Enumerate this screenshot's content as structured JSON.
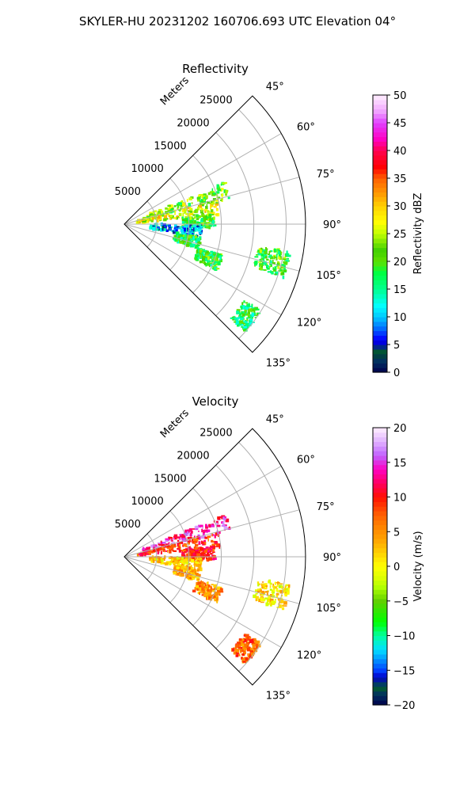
{
  "suptitle": "SKYLER-HU  20231202  160706.693 UTC Elevation 04°",
  "chart_data": [
    {
      "type": "heatmap",
      "title": "Reflectivity",
      "radial_label": "Meters",
      "radial_ticks": [
        5000,
        10000,
        15000,
        20000,
        25000
      ],
      "radial_tick_labels": [
        "5000",
        "10000",
        "15000",
        "20000",
        "25000"
      ],
      "r_max": 28000,
      "theta_range_deg": [
        45,
        135
      ],
      "theta_ticks_deg": [
        45,
        60,
        75,
        90,
        105,
        120,
        135
      ],
      "theta_tick_labels": [
        "45°",
        "60°",
        "75°",
        "90°",
        "105°",
        "120°",
        "135°"
      ],
      "colorbar": {
        "label": "Reflectivity dBZ",
        "range": [
          0,
          50
        ],
        "ticks": [
          0,
          5,
          10,
          15,
          20,
          25,
          30,
          35,
          40,
          45,
          50
        ],
        "tick_labels": [
          "0",
          "5",
          "10",
          "15",
          "20",
          "25",
          "30",
          "35",
          "40",
          "45",
          "50"
        ],
        "colormap": "NWS reflectivity"
      },
      "echo_regions": [
        {
          "az_deg": 72,
          "range_m": [
            3000,
            17000
          ],
          "value": 22
        },
        {
          "az_deg": 80,
          "range_m": [
            2000,
            15000
          ],
          "value": 26
        },
        {
          "az_deg": 88,
          "range_m": [
            9000,
            14000
          ],
          "value": 20
        },
        {
          "az_deg": 95,
          "range_m": [
            4000,
            12000
          ],
          "value": 9
        },
        {
          "az_deg": 104,
          "range_m": [
            8000,
            12000
          ],
          "value": 18
        },
        {
          "az_deg": 112,
          "range_m": [
            12000,
            16000
          ],
          "value": 19
        },
        {
          "az_deg": 127,
          "range_m": [
            22000,
            25000
          ],
          "value": 18
        },
        {
          "az_deg": 104,
          "range_m": [
            21000,
            26000
          ],
          "value": 20
        }
      ]
    },
    {
      "type": "heatmap",
      "title": "Velocity",
      "radial_label": "Meters",
      "radial_ticks": [
        5000,
        10000,
        15000,
        20000,
        25000
      ],
      "radial_tick_labels": [
        "5000",
        "10000",
        "15000",
        "20000",
        "25000"
      ],
      "r_max": 28000,
      "theta_range_deg": [
        45,
        135
      ],
      "theta_ticks_deg": [
        45,
        60,
        75,
        90,
        105,
        120,
        135
      ],
      "theta_tick_labels": [
        "45°",
        "60°",
        "75°",
        "90°",
        "105°",
        "120°",
        "135°"
      ],
      "colorbar": {
        "label": "Velocity (m/s)",
        "range": [
          -20,
          20
        ],
        "ticks": [
          -20,
          -15,
          -10,
          -5,
          0,
          5,
          10,
          15,
          20
        ],
        "tick_labels": [
          "−20",
          "−15",
          "−10",
          "−5",
          "0",
          "5",
          "10",
          "15",
          "20"
        ],
        "colormap": "NWS velocity"
      },
      "echo_regions": [
        {
          "az_deg": 72,
          "range_m": [
            3000,
            17000
          ],
          "value": 14
        },
        {
          "az_deg": 80,
          "range_m": [
            2000,
            15000
          ],
          "value": 9
        },
        {
          "az_deg": 88,
          "range_m": [
            9000,
            14000
          ],
          "value": 10
        },
        {
          "az_deg": 95,
          "range_m": [
            4000,
            12000
          ],
          "value": 2
        },
        {
          "az_deg": 104,
          "range_m": [
            8000,
            12000
          ],
          "value": 4
        },
        {
          "az_deg": 112,
          "range_m": [
            12000,
            16000
          ],
          "value": 5
        },
        {
          "az_deg": 127,
          "range_m": [
            22000,
            25000
          ],
          "value": 7
        },
        {
          "az_deg": 104,
          "range_m": [
            21000,
            26000
          ],
          "value": 1
        }
      ]
    }
  ]
}
